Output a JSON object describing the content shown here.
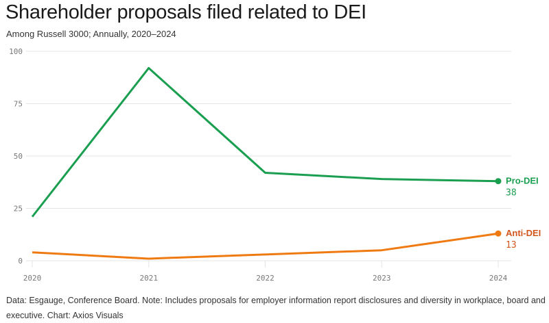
{
  "chart_data": {
    "type": "line",
    "title": "Shareholder proposals filed related to DEI",
    "subtitle": "Among Russell 3000; Annually, 2020–2024",
    "x": [
      "2020",
      "2021",
      "2022",
      "2023",
      "2024"
    ],
    "ylim": [
      0,
      100
    ],
    "yticks": [
      "0",
      "25",
      "50",
      "75",
      "100"
    ],
    "grid": true,
    "series": [
      {
        "name": "Pro-DEI",
        "values": [
          21,
          92,
          42,
          39,
          38
        ],
        "color": "#1a9e4f",
        "label_color": "#1a9e4f",
        "end_label": "38"
      },
      {
        "name": "Anti-DEI",
        "values": [
          4,
          1,
          3,
          5,
          13
        ],
        "color": "#f07a12",
        "label_color": "#d2561b",
        "end_label": "13"
      }
    ],
    "note": "Data: Esgauge, Conference Board. Note: Includes proposals for employer information report disclosures and diversity in workplace, board and executive. Chart: Axios Visuals"
  }
}
